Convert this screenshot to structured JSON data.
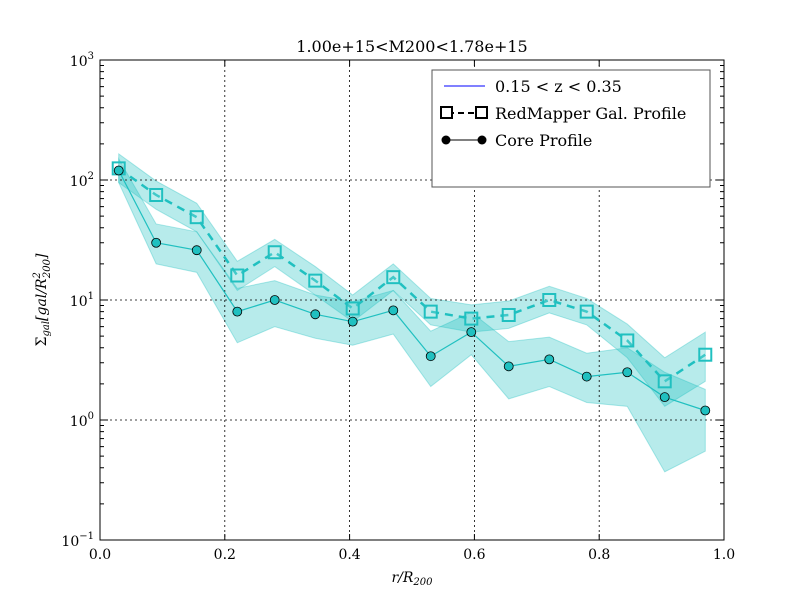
{
  "chart_data": {
    "type": "line",
    "title": "1.00e+15<M200<1.78e+15",
    "xlabel_main": "r/R",
    "xlabel_sub": "200",
    "ylabel_main": "Σ",
    "ylabel_sub": "gal",
    "ylabel_bracket_open": "[gal/R",
    "ylabel_sup": "2",
    "ylabel_sub2": "200",
    "ylabel_bracket_close": "]",
    "xlim": [
      0.0,
      1.0
    ],
    "ylim": [
      0.1,
      1000
    ],
    "yscale": "log",
    "grid": true,
    "x_ticks": [
      {
        "value": 0.0,
        "label": "0.0"
      },
      {
        "value": 0.2,
        "label": "0.2"
      },
      {
        "value": 0.4,
        "label": "0.4"
      },
      {
        "value": 0.6,
        "label": "0.6"
      },
      {
        "value": 0.8,
        "label": "0.8"
      },
      {
        "value": 1.0,
        "label": "1.0"
      }
    ],
    "y_ticks": [
      {
        "value": 0.1,
        "base": "10",
        "exp": "−1"
      },
      {
        "value": 1,
        "base": "10",
        "exp": "0"
      },
      {
        "value": 10,
        "base": "10",
        "exp": "1"
      },
      {
        "value": 100,
        "base": "10",
        "exp": "2"
      },
      {
        "value": 1000,
        "base": "10",
        "exp": "3"
      }
    ],
    "legend": {
      "placement": "top-right",
      "entries": [
        {
          "label": "0.15 < z < 0.35",
          "style": "line",
          "color": "#0000ff"
        },
        {
          "label": "RedMapper Gal. Profile",
          "style": "dashed-square",
          "color": "#000000"
        },
        {
          "label": "Core Profile",
          "style": "solid-circle",
          "color": "#000000"
        }
      ]
    },
    "series": [
      {
        "label": "RedMapper Gal. Profile",
        "color": "#20c0c0",
        "marker": "square",
        "linestyle": "dashed",
        "x": [
          0.03,
          0.09,
          0.155,
          0.22,
          0.28,
          0.345,
          0.405,
          0.47,
          0.53,
          0.595,
          0.655,
          0.72,
          0.78,
          0.845,
          0.905,
          0.97
        ],
        "y": [
          125,
          75,
          49,
          16,
          25,
          14.5,
          8.5,
          15.5,
          8,
          7,
          7.5,
          10,
          8,
          4.6,
          2.1,
          3.5
        ],
        "band_lower": [
          95,
          57,
          37,
          12,
          19,
          11,
          6.6,
          12,
          6.2,
          5.4,
          5.8,
          7.8,
          6.2,
          3.3,
          1.3,
          2.1
        ],
        "band_upper": [
          165,
          98,
          64,
          21,
          32,
          19,
          11,
          20,
          10.3,
          9.1,
          9.8,
          13,
          10.3,
          6.3,
          3.3,
          5.4
        ]
      },
      {
        "label": "Core Profile",
        "color": "#20c0c0",
        "marker": "circle",
        "linestyle": "solid",
        "x": [
          0.03,
          0.09,
          0.155,
          0.22,
          0.28,
          0.345,
          0.405,
          0.47,
          0.53,
          0.595,
          0.655,
          0.72,
          0.78,
          0.845,
          0.905,
          0.97
        ],
        "y": [
          120,
          30,
          26,
          8,
          10,
          7.6,
          6.6,
          8.2,
          3.4,
          5.4,
          2.8,
          3.2,
          2.3,
          2.5,
          1.55,
          1.2
        ],
        "band_lower": [
          95,
          20,
          17,
          4.4,
          6,
          4.8,
          4.2,
          5.2,
          1.9,
          3.5,
          1.5,
          1.9,
          1.4,
          1.3,
          0.37,
          0.55
        ],
        "band_upper": [
          150,
          43,
          37,
          12.5,
          14.5,
          11,
          9.7,
          12,
          5.5,
          7.9,
          4.5,
          4.9,
          3.6,
          4,
          2.5,
          1.8
        ]
      }
    ]
  }
}
